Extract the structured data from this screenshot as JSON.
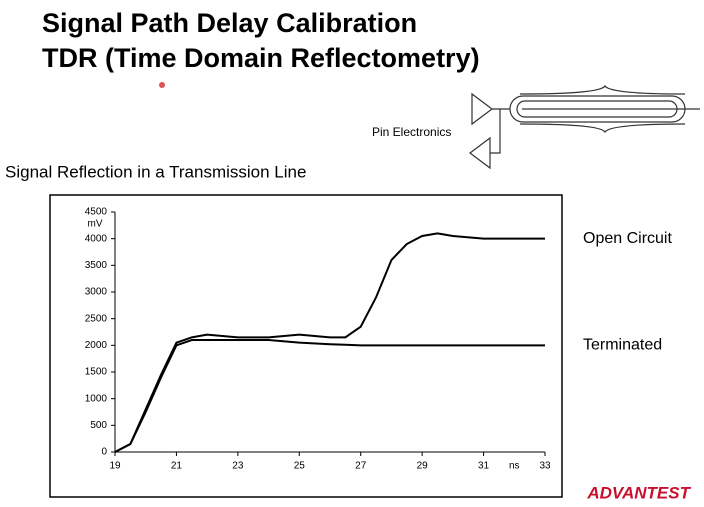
{
  "header": {
    "title_lines": [
      "Signal Path Delay Calibration",
      "TDR (Time Domain Reflectometry)"
    ]
  },
  "diagram": {
    "label": "Pin Electronics"
  },
  "footer": {
    "logo": "ADVANTEST"
  },
  "chart_data": {
    "type": "line",
    "title": "Signal Reflection in a Transmission Line",
    "x_unit": "ns",
    "y_unit": "mV",
    "x": [
      19,
      19.5,
      20,
      20.5,
      21,
      21.5,
      22,
      23,
      24,
      25,
      26,
      26.5,
      27,
      27.5,
      28,
      28.5,
      29,
      29.5,
      30,
      31,
      32,
      33
    ],
    "series": [
      {
        "name": "Open Circuit",
        "color": "#000000",
        "values": [
          0,
          150,
          800,
          1450,
          2050,
          2150,
          2200,
          2150,
          2150,
          2200,
          2150,
          2150,
          2350,
          2900,
          3600,
          3900,
          4050,
          4100,
          4050,
          4000,
          4000,
          4000
        ]
      },
      {
        "name": "Terminated",
        "color": "#000000",
        "values": [
          0,
          150,
          750,
          1400,
          2000,
          2100,
          2100,
          2100,
          2100,
          2050,
          2020,
          2010,
          2000,
          2000,
          2000,
          2000,
          2000,
          2000,
          2000,
          2000,
          2000,
          2000
        ]
      }
    ],
    "xlim": [
      19,
      33
    ],
    "xticks": [
      19,
      21,
      23,
      25,
      27,
      29,
      31,
      33
    ],
    "ylim": [
      0,
      4500
    ],
    "yticks": [
      0,
      500,
      1000,
      1500,
      2000,
      2500,
      3000,
      3500,
      4000,
      4500
    ],
    "grid": false
  }
}
